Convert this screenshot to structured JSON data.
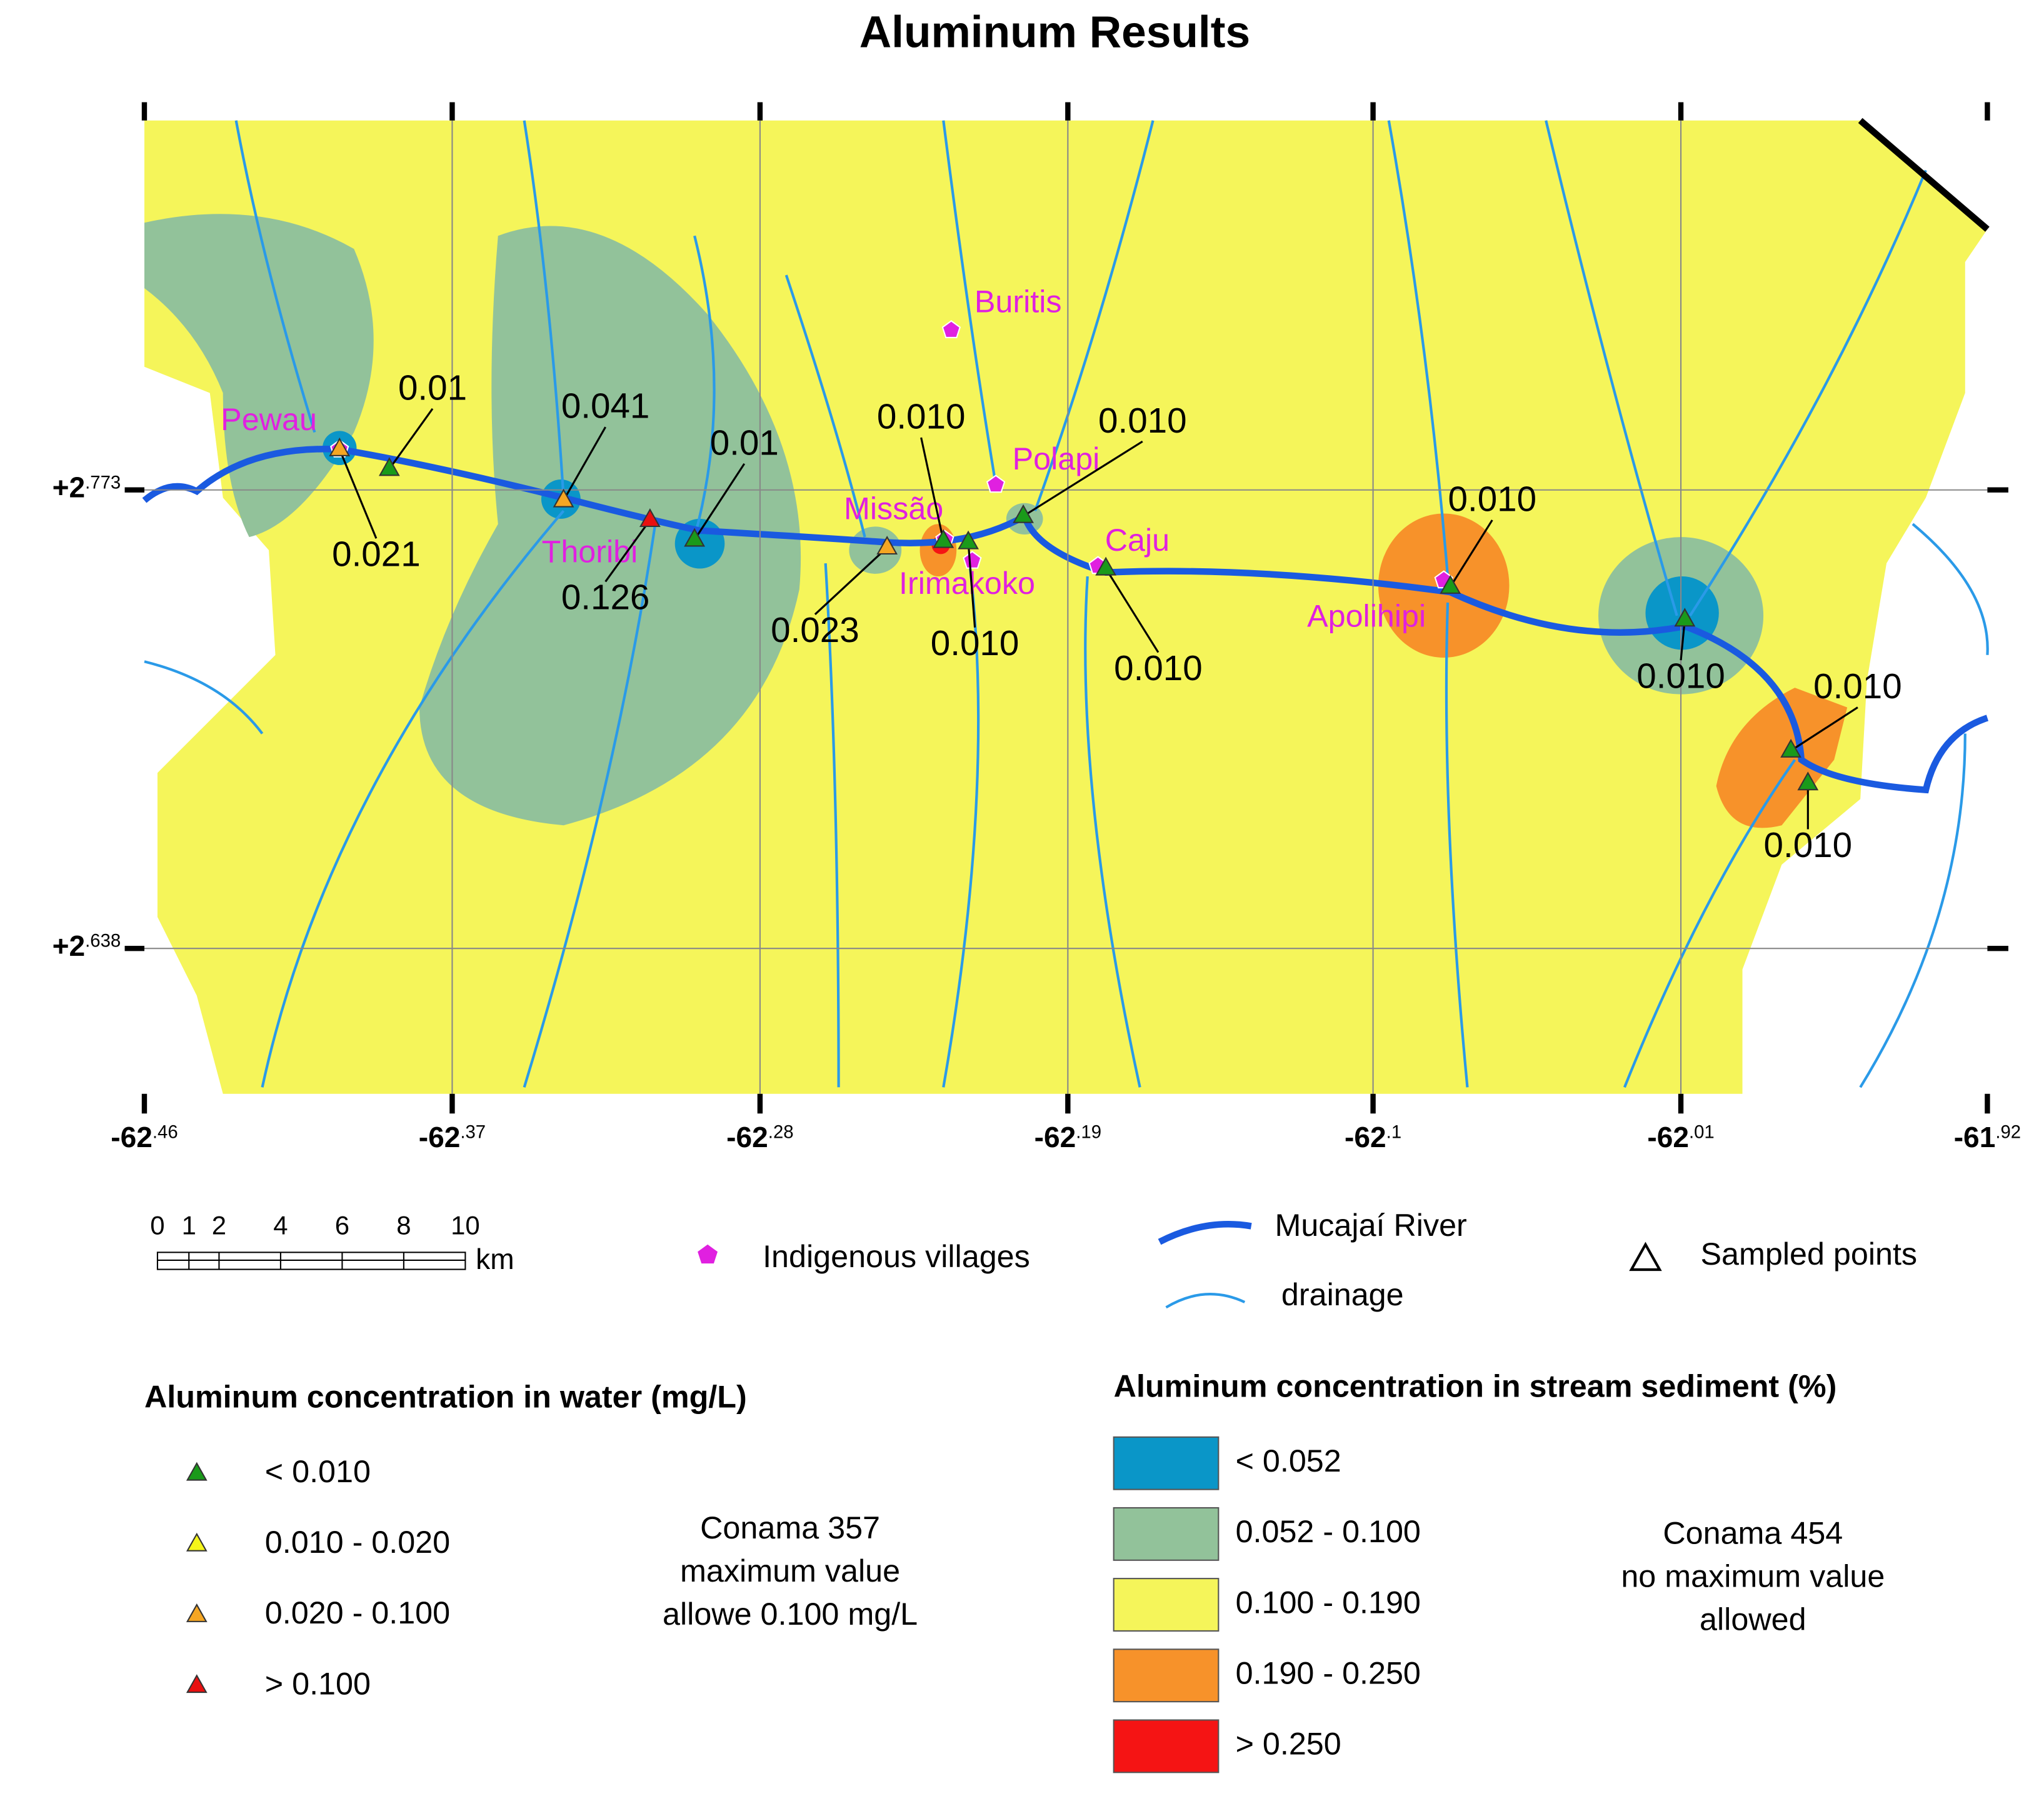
{
  "title": "Aluminum Results",
  "x_ticks": [
    {
      "major": "-62",
      "minor": ".46"
    },
    {
      "major": "-62",
      "minor": ".37"
    },
    {
      "major": "-62",
      "minor": ".28"
    },
    {
      "major": "-62",
      "minor": ".19"
    },
    {
      "major": "-62",
      "minor": ".1"
    },
    {
      "major": "-62",
      "minor": ".01"
    },
    {
      "major": "-61",
      "minor": ".92"
    }
  ],
  "y_ticks": [
    {
      "major": "+2",
      "minor": ".773"
    },
    {
      "major": "+2",
      "minor": ".638"
    }
  ],
  "villages": [
    "Pewau",
    "Buritis",
    "Polapi",
    "Missão",
    "Irimakoko",
    "Caju",
    "Thoribi",
    "Apolihipi"
  ],
  "samples": [
    {
      "label": "0.01",
      "color": "#1a9a1a"
    },
    {
      "label": "0.021",
      "color": "#f5a623"
    },
    {
      "label": "0.041",
      "color": "#f5a623"
    },
    {
      "label": "0.126",
      "color": "#e81010"
    },
    {
      "label": "0.01",
      "color": "#1a9a1a"
    },
    {
      "label": "0.023",
      "color": "#f5a623"
    },
    {
      "label": "0.010",
      "color": "#1a9a1a"
    },
    {
      "label": "0.010",
      "color": "#1a9a1a"
    },
    {
      "label": "0.010",
      "color": "#1a9a1a"
    },
    {
      "label": "0.010",
      "color": "#1a9a1a"
    },
    {
      "label": "0.010",
      "color": "#1a9a1a"
    },
    {
      "label": "0.010",
      "color": "#1a9a1a"
    },
    {
      "label": "0.010",
      "color": "#1a9a1a"
    },
    {
      "label": "0.010",
      "color": "#1a9a1a"
    }
  ],
  "scale_bar": {
    "labels": [
      "0",
      "1",
      "2",
      "4",
      "6",
      "8",
      "10"
    ],
    "unit": "km"
  },
  "legend": {
    "villages": "Indigenous villages",
    "river": "Mucajaí River",
    "drainage": "drainage",
    "sampled": "Sampled points"
  },
  "water_legend": {
    "title": "Aluminum concentration in water (mg/L)",
    "items": [
      {
        "label": "< 0.010",
        "color": "#1a9a1a"
      },
      {
        "label": "0.010 - 0.020",
        "color": "#f5f51a"
      },
      {
        "label": "0.020 - 0.100",
        "color": "#f5a623"
      },
      {
        "label": "> 0.100",
        "color": "#e81010"
      }
    ],
    "note": [
      "Conama 357",
      "maximum value",
      "allowe 0.100 mg/L"
    ]
  },
  "sediment_legend": {
    "title": "Aluminum concentration in stream sediment (%)",
    "items": [
      {
        "label": "< 0.052",
        "color": "#0a96c8"
      },
      {
        "label": "0.052 - 0.100",
        "color": "#92c29a"
      },
      {
        "label": "0.100 - 0.190",
        "color": "#f5f55a"
      },
      {
        "label": "0.190 - 0.250",
        "color": "#f7922a"
      },
      {
        "label": "> 0.250",
        "color": "#f51414"
      }
    ],
    "note": [
      "Conama 454",
      "no maximum value",
      "allowed"
    ]
  }
}
